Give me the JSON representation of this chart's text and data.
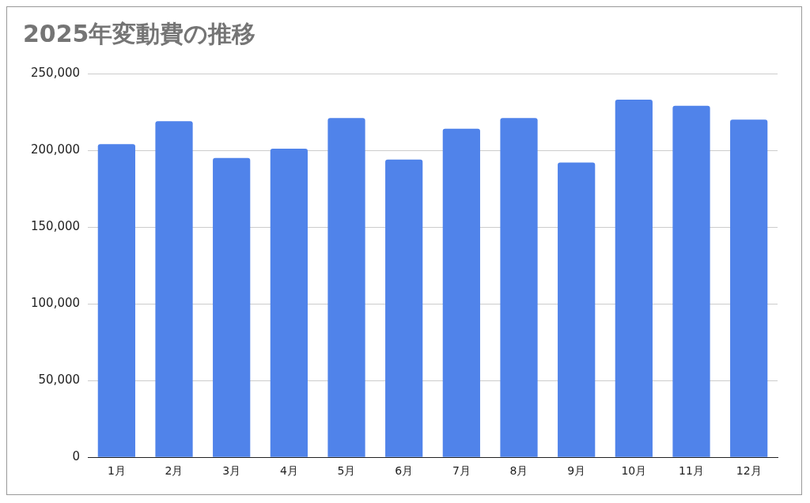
{
  "chart_data": {
    "type": "bar",
    "title": "2025年変動費の推移",
    "categories": [
      "1月",
      "2月",
      "3月",
      "4月",
      "5月",
      "6月",
      "7月",
      "8月",
      "9月",
      "10月",
      "11月",
      "12月"
    ],
    "values": [
      204000,
      219000,
      195000,
      201000,
      221000,
      194000,
      214000,
      221000,
      192000,
      233000,
      229000,
      220000
    ],
    "color": "#5083ea",
    "ylim": [
      0,
      250000
    ],
    "yticks": [
      0,
      {
        "value": 50000,
        "label": "50,000"
      },
      {
        "value": 100000,
        "label": "100,000"
      },
      {
        "value": 150000,
        "label": "150,000"
      },
      {
        "value": 200000,
        "label": "200,000"
      },
      {
        "value": 250000,
        "label": "250,000"
      }
    ],
    "grid": "y",
    "legend": false
  }
}
